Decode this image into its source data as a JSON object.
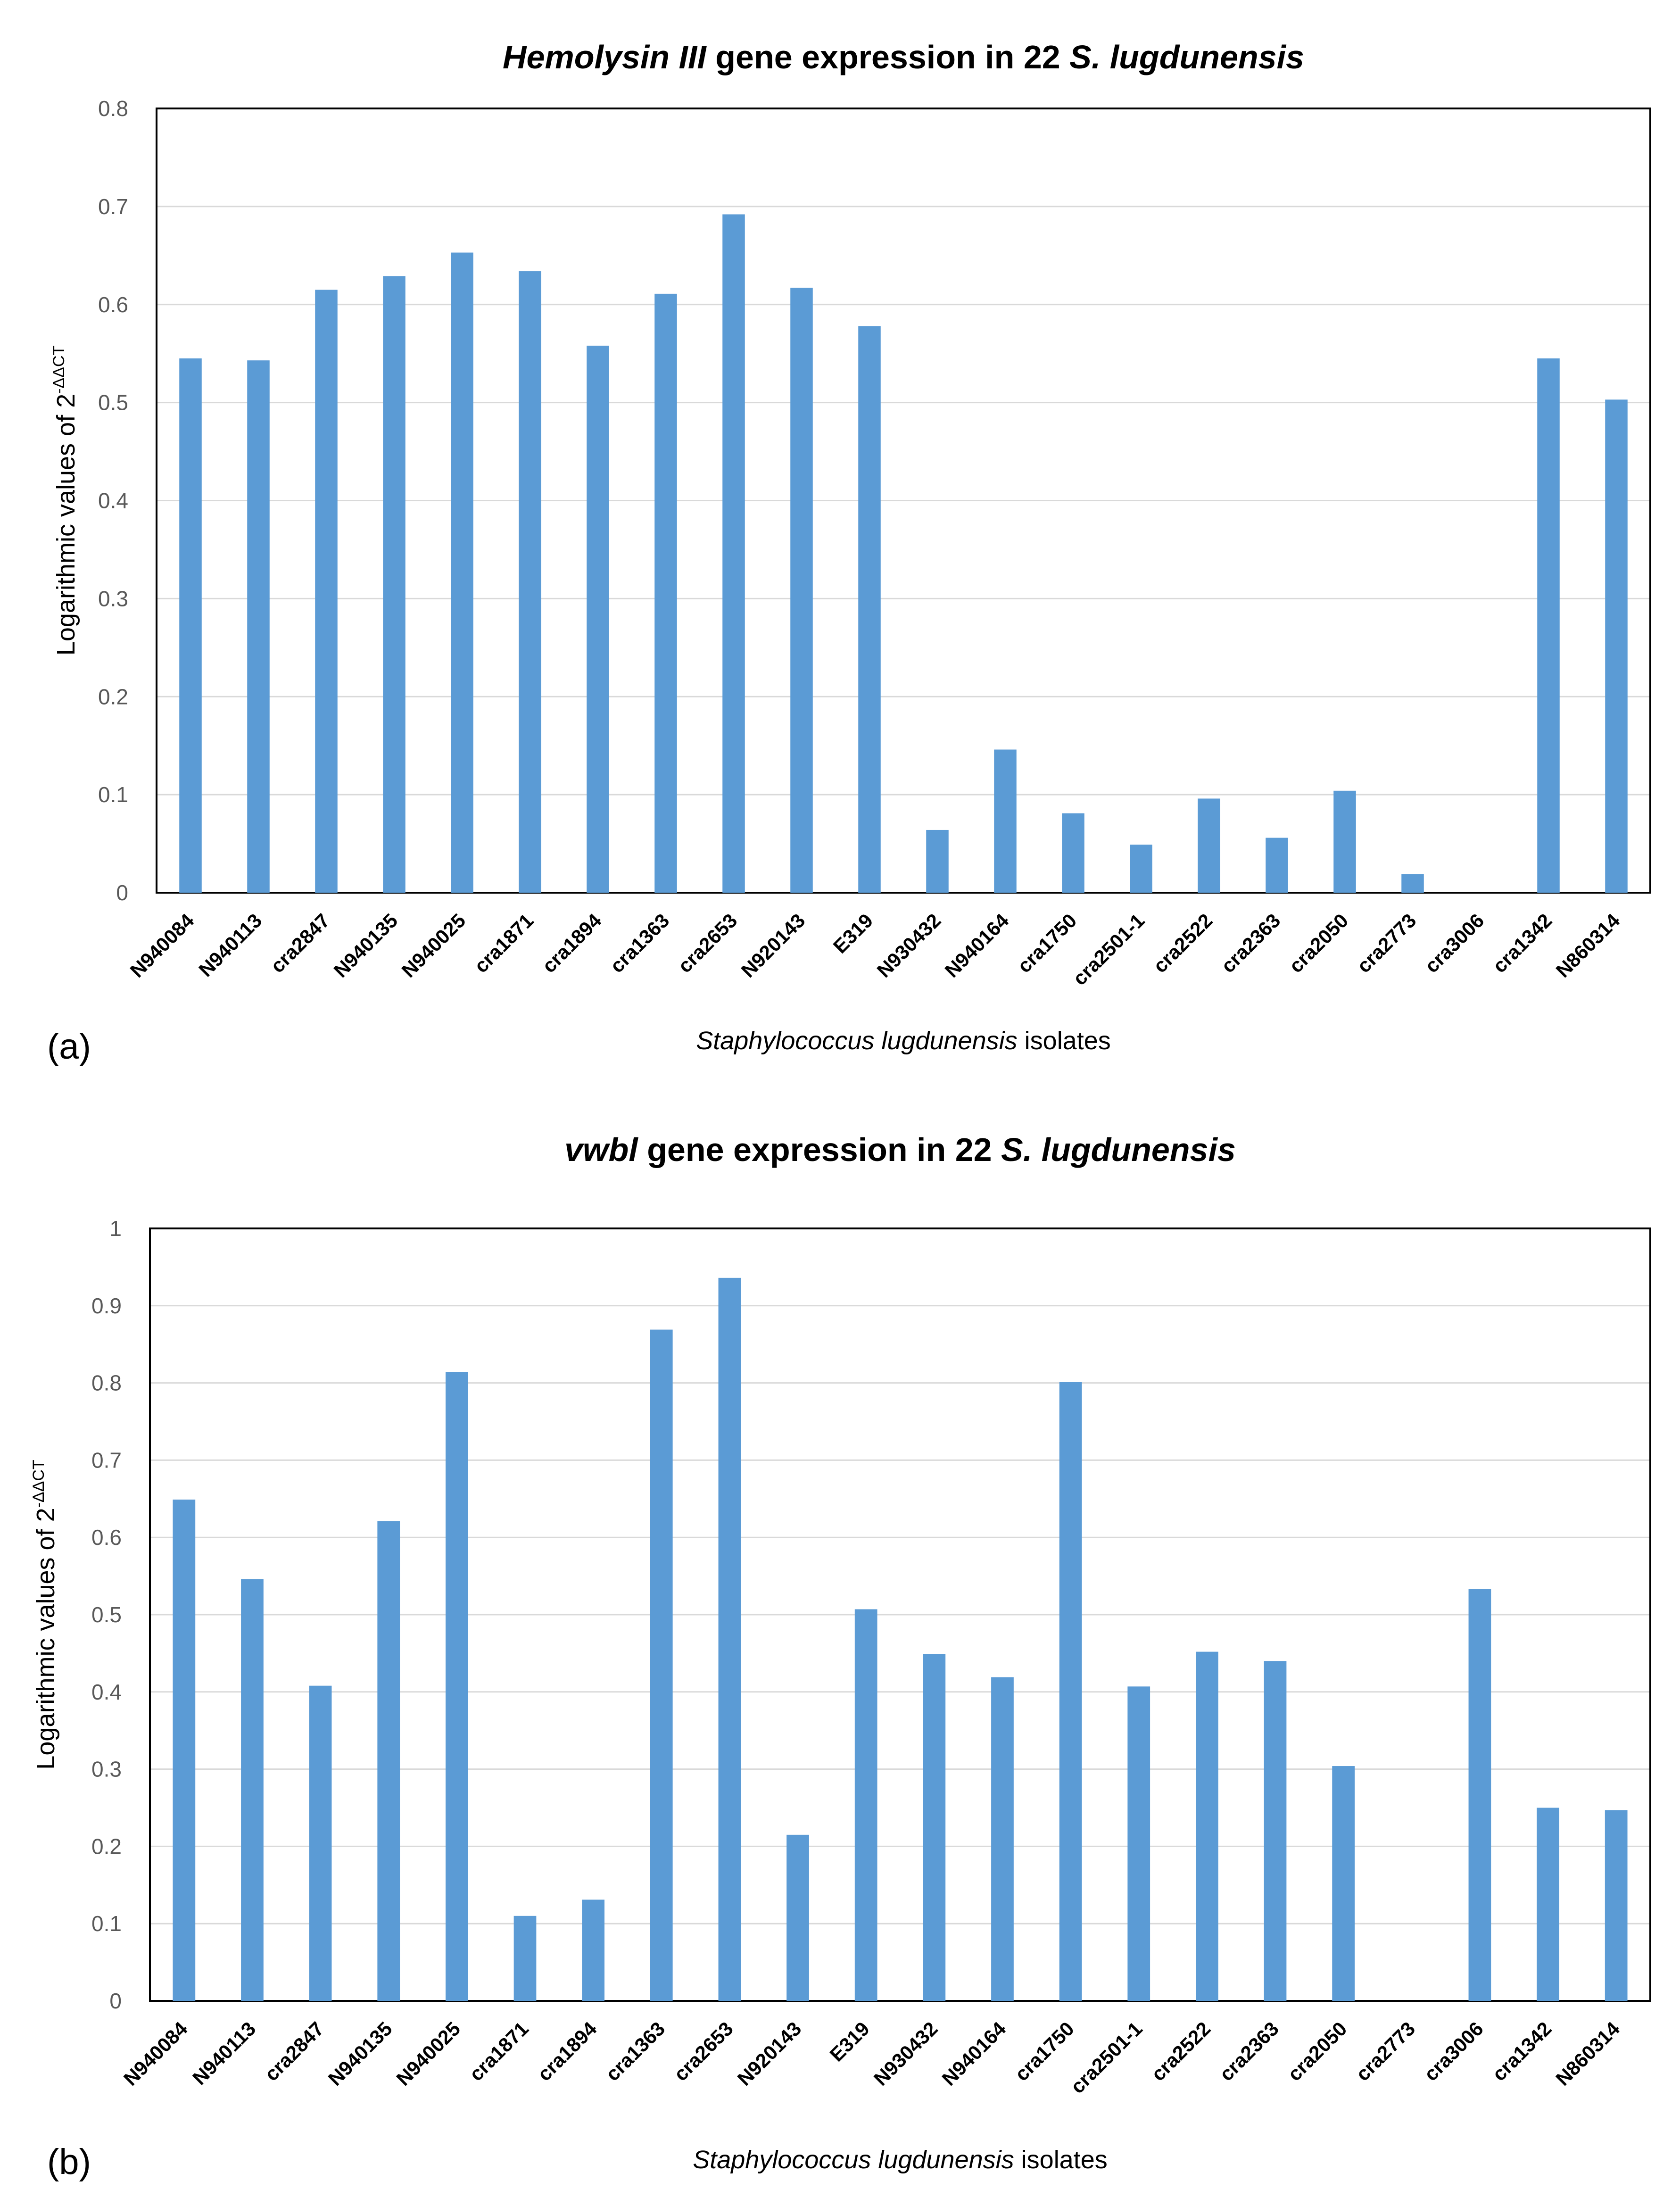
{
  "chart_data": [
    {
      "type": "bar",
      "panel_label": "(a)",
      "title_gene": "Hemolysin III",
      "title_rest": " gene expression in 22 ",
      "title_species": "S. lugdunensis",
      "ylabel_main": "Logarithmic values of 2",
      "ylabel_sup": "-ΔΔCT",
      "xlabel_species": "Staphylococcus lugdunensis",
      "xlabel_rest": " isolates",
      "ylim": [
        0,
        0.8
      ],
      "yticks": [
        "0",
        "0.1",
        "0.2",
        "0.3",
        "0.4",
        "0.5",
        "0.6",
        "0.7",
        "0.8"
      ],
      "categories": [
        "N940084",
        "N940113",
        "cra2847",
        "N940135",
        "N940025",
        "cra1871",
        "cra1894",
        "cra1363",
        "cra2653",
        "N920143",
        "E319",
        "N930432",
        "N940164",
        "cra1750",
        "cra2501-1",
        "cra2522",
        "cra2363",
        "cra2050",
        "cra2773",
        "cra3006",
        "cra1342",
        "N860314"
      ],
      "values": [
        0.545,
        0.543,
        0.615,
        0.629,
        0.653,
        0.634,
        0.558,
        0.611,
        0.692,
        0.617,
        0.578,
        0.064,
        0.146,
        0.081,
        0.049,
        0.096,
        0.056,
        0.104,
        0.019,
        0,
        0.545,
        0.503
      ]
    },
    {
      "type": "bar",
      "panel_label": "(b)",
      "title_gene": "vwbl",
      "title_rest": " gene expression in 22 ",
      "title_species": "S. lugdunensis",
      "ylabel_main": "Logarithmic values of 2",
      "ylabel_sup": "-ΔΔCT",
      "xlabel_species": "Staphylococcus lugdunensis",
      "xlabel_rest": " isolates",
      "ylim": [
        0,
        1
      ],
      "yticks": [
        "0",
        "0.1",
        "0.2",
        "0.3",
        "0.4",
        "0.5",
        "0.6",
        "0.7",
        "0.8",
        "0.9",
        "1"
      ],
      "categories": [
        "N940084",
        "N940113",
        "cra2847",
        "N940135",
        "N940025",
        "cra1871",
        "cra1894",
        "cra1363",
        "cra2653",
        "N920143",
        "E319",
        "N930432",
        "N940164",
        "cra1750",
        "cra2501-1",
        "cra2522",
        "cra2363",
        "cra2050",
        "cra2773",
        "cra3006",
        "cra1342",
        "N860314"
      ],
      "values": [
        0.649,
        0.546,
        0.408,
        0.621,
        0.814,
        0.11,
        0.131,
        0.869,
        0.936,
        0.215,
        0.507,
        0.449,
        0.419,
        0.801,
        0.407,
        0.452,
        0.44,
        0.304,
        0,
        0.533,
        0.25,
        0.247
      ]
    }
  ]
}
